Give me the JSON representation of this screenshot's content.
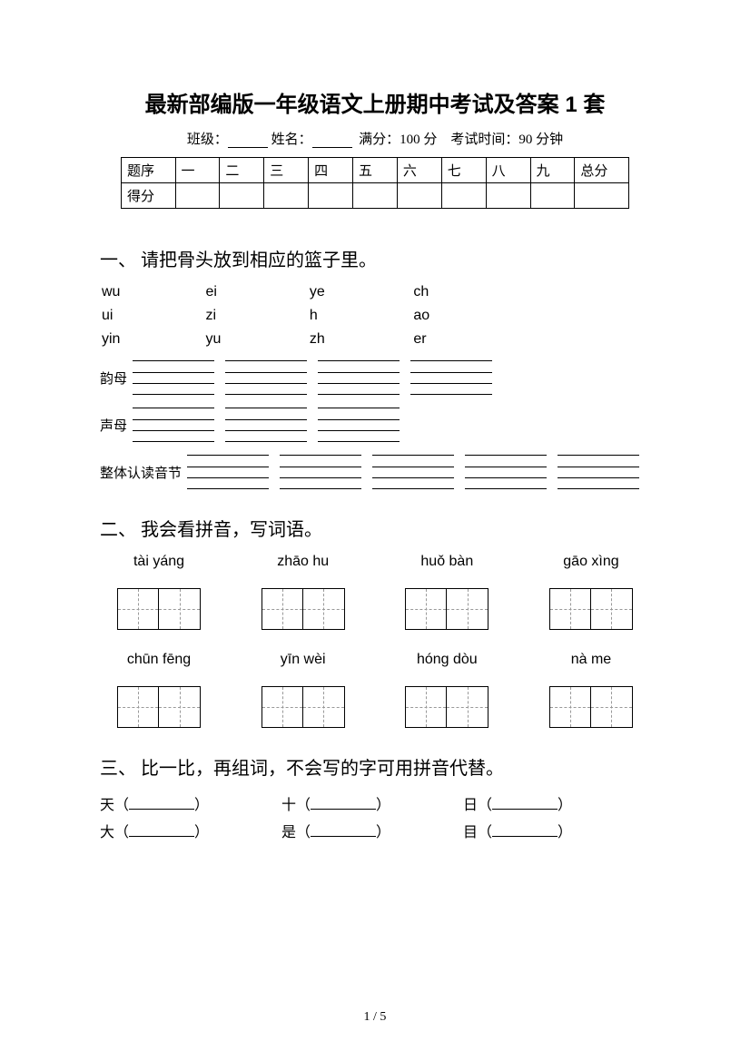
{
  "title": "最新部编版一年级语文上册期中考试及答案 1 套",
  "info": {
    "class_label": "班级：",
    "name_label": "姓名：",
    "full_score_label": "满分：100 分",
    "time_label": "考试时间：90 分钟"
  },
  "score_table": {
    "row1_label": "题序",
    "cols": [
      "一",
      "二",
      "三",
      "四",
      "五",
      "六",
      "七",
      "八",
      "九",
      "总分"
    ],
    "row2_label": "得分"
  },
  "q1": {
    "title": "一、 请把骨头放到相应的篮子里。",
    "pinyin_grid": [
      [
        "wu",
        "ei",
        "ye",
        "ch"
      ],
      [
        "ui",
        "zi",
        "h",
        "ao"
      ],
      [
        "yin",
        "yu",
        "zh",
        "er"
      ]
    ],
    "categories": [
      {
        "label": "韵母",
        "boxes": 4
      },
      {
        "label": "声母",
        "boxes": 3
      },
      {
        "label": "整体认读音节",
        "boxes": 5
      }
    ]
  },
  "q2": {
    "title": "二、 我会看拼音，写词语。",
    "rows": [
      [
        "tài yáng",
        "zhāo hu",
        "huǒ bàn",
        "gāo xìng"
      ],
      [
        "chūn fēng",
        "yīn wèi",
        "hóng dòu",
        "nà me"
      ]
    ]
  },
  "q3": {
    "title": "三、 比一比，再组词，不会写的字可用拼音代替。",
    "rows": [
      [
        "天",
        "十",
        "日"
      ],
      [
        "大",
        "是",
        "目"
      ]
    ]
  },
  "footer": "1 / 5"
}
